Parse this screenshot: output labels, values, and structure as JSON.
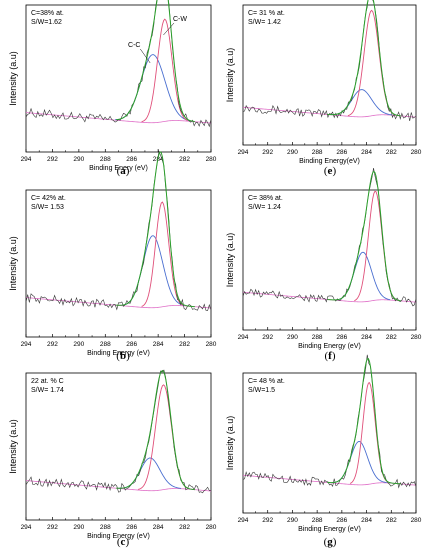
{
  "chart_data": [
    {
      "type": "line",
      "panel": "a",
      "letter": "a",
      "xlabel": "Binding Enery (eV)",
      "ylabel": "Intensity (a.u)",
      "xlim": [
        294,
        280
      ],
      "xticks": [
        294,
        292,
        290,
        288,
        286,
        284,
        282,
        280
      ],
      "annotations": [
        "C=38% at.",
        "S/W=1.62"
      ],
      "peak_labels": [
        {
          "text": "C-C",
          "x": 285.2
        },
        {
          "text": "C-W",
          "x": 282.8
        }
      ],
      "components": [
        {
          "center": 284.4,
          "height": 0.52,
          "width": 0.9
        },
        {
          "center": 283.5,
          "height": 0.78,
          "width": 0.55
        }
      ]
    },
    {
      "type": "line",
      "panel": "e",
      "letter": "e",
      "xlabel": "Binding Energy(eV)",
      "ylabel": "Intensity (a.u)",
      "xlim": [
        294,
        280
      ],
      "xticks": [
        294,
        292,
        290,
        288,
        286,
        284,
        282,
        280
      ],
      "annotations": [
        "C= 31 % at.",
        "S/W= 1.42"
      ],
      "peak_labels": [],
      "components": [
        {
          "center": 284.4,
          "height": 0.22,
          "width": 0.8
        },
        {
          "center": 283.6,
          "height": 0.85,
          "width": 0.6
        }
      ]
    },
    {
      "type": "line",
      "panel": "b",
      "letter": "b",
      "xlabel": "Binding Energy (eV)",
      "ylabel": "Intensity (a.u)",
      "xlim": [
        294,
        280
      ],
      "xticks": [
        294,
        292,
        290,
        288,
        286,
        284,
        282,
        280
      ],
      "annotations": [
        "C= 42% at.",
        "S/W= 1.53"
      ],
      "peak_labels": [],
      "components": [
        {
          "center": 284.4,
          "height": 0.55,
          "width": 0.75
        },
        {
          "center": 283.7,
          "height": 0.8,
          "width": 0.5
        }
      ]
    },
    {
      "type": "line",
      "panel": "f",
      "letter": "f",
      "xlabel": "Binding Energy (eV)",
      "ylabel": "Intensity (a.u)",
      "xlim": [
        294,
        280
      ],
      "xticks": [
        294,
        292,
        290,
        288,
        286,
        284,
        282,
        280
      ],
      "annotations": [
        "C= 38% at.",
        "S/W= 1.24"
      ],
      "peak_labels": [],
      "components": [
        {
          "center": 284.3,
          "height": 0.4,
          "width": 0.7
        },
        {
          "center": 283.3,
          "height": 0.88,
          "width": 0.55
        }
      ]
    },
    {
      "type": "line",
      "panel": "c",
      "letter": "c",
      "xlabel": "Binding Energy (eV)",
      "ylabel": "Intensity (a.u)",
      "xlim": [
        294,
        280
      ],
      "xticks": [
        294,
        292,
        290,
        288,
        286,
        284,
        282,
        280
      ],
      "annotations": [
        "22 at. % C",
        "S/W= 1.74"
      ],
      "peak_labels": [],
      "components": [
        {
          "center": 284.6,
          "height": 0.25,
          "width": 0.75
        },
        {
          "center": 283.6,
          "height": 0.8,
          "width": 0.6
        }
      ]
    },
    {
      "type": "line",
      "panel": "g",
      "letter": "g",
      "xlabel": "Binding Energy (eV)",
      "ylabel": "Intensity (a.u)",
      "xlim": [
        294,
        280
      ],
      "xticks": [
        294,
        292,
        290,
        288,
        286,
        284,
        282,
        280
      ],
      "annotations": [
        "C= 48 % at.",
        "S/W=1.5"
      ],
      "peak_labels": [],
      "components": [
        {
          "center": 284.6,
          "height": 0.35,
          "width": 0.7
        },
        {
          "center": 283.8,
          "height": 0.82,
          "width": 0.5
        }
      ]
    }
  ],
  "colors": {
    "data": "#333333",
    "envelope": "#2ca02c",
    "component_cc": "#4a6fd0",
    "component_cw": "#e0507a",
    "background": "#e070c8",
    "axis": "#000000"
  }
}
